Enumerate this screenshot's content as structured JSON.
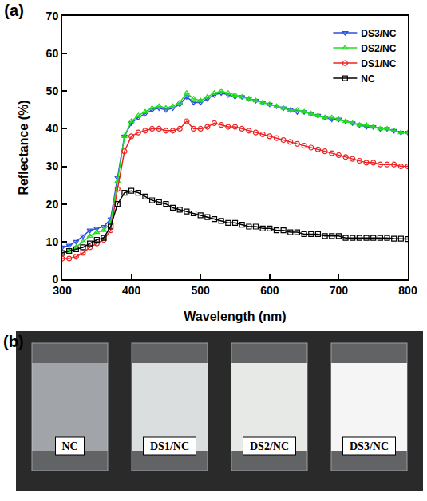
{
  "chart_data": {
    "type": "line",
    "title": "(a)",
    "x_label": "Wavelength (nm)",
    "y_label": "Reflectance (%)",
    "x": [
      300,
      310,
      320,
      330,
      340,
      350,
      360,
      370,
      380,
      390,
      400,
      410,
      420,
      430,
      440,
      450,
      460,
      470,
      480,
      490,
      500,
      510,
      520,
      530,
      540,
      550,
      560,
      570,
      580,
      590,
      600,
      610,
      620,
      630,
      640,
      650,
      660,
      670,
      680,
      690,
      700,
      710,
      720,
      730,
      740,
      750,
      760,
      770,
      780,
      790,
      800
    ],
    "series": [
      {
        "name": "DS3/NC",
        "color": "#2b4fe0",
        "marker": "triangle-down",
        "values": [
          8.5,
          9,
          10,
          11.5,
          13,
          13.5,
          14,
          16,
          27,
          38,
          41.5,
          43,
          44,
          45,
          45.5,
          45,
          45.5,
          46.5,
          48.5,
          47,
          47,
          48,
          49,
          49.5,
          49,
          48.5,
          48.5,
          48,
          47.5,
          47,
          46.5,
          46,
          45.5,
          45,
          44.5,
          44.5,
          44,
          43.5,
          43,
          42.5,
          42.5,
          42,
          41.5,
          41,
          40.5,
          40.5,
          40,
          40,
          39.5,
          39,
          39
        ]
      },
      {
        "name": "DS2/NC",
        "color": "#22dd22",
        "marker": "triangle-up",
        "values": [
          7,
          7.5,
          8.5,
          10,
          11.5,
          12.5,
          13,
          15,
          26,
          38,
          42,
          43.5,
          44.5,
          45.5,
          46,
          45.5,
          46,
          47,
          49.5,
          48,
          47.5,
          48.5,
          49.5,
          50,
          49.5,
          49,
          48.5,
          48,
          47.5,
          47,
          46.5,
          46,
          45.5,
          45,
          45,
          44.5,
          44,
          43.5,
          43,
          43,
          42.5,
          42,
          41.5,
          41,
          41,
          40.5,
          40,
          40,
          39.5,
          39,
          39
        ]
      },
      {
        "name": "DS1/NC",
        "color": "#ee2222",
        "marker": "circle",
        "values": [
          5.5,
          5.5,
          6,
          7,
          8.5,
          9.5,
          10.5,
          13,
          24,
          34,
          38,
          39,
          39.5,
          40,
          40,
          39.5,
          39.5,
          40,
          42,
          40,
          40,
          40.5,
          41.5,
          41,
          40.5,
          40.5,
          40,
          39.5,
          39,
          38.5,
          38,
          37.5,
          37,
          36.5,
          36,
          35.5,
          35,
          34.5,
          34,
          33.5,
          33,
          32.5,
          32,
          31.5,
          31,
          31,
          30.5,
          30.5,
          30.5,
          30,
          30
        ]
      },
      {
        "name": "NC",
        "color": "#000000",
        "marker": "square",
        "values": [
          7,
          7.5,
          8,
          8.5,
          9.5,
          10.5,
          11,
          14,
          20,
          23,
          23.5,
          23,
          22,
          21,
          20.5,
          20,
          19,
          18.5,
          18,
          17.5,
          17,
          16.5,
          16,
          15.5,
          15,
          15,
          14.5,
          14,
          14,
          13.5,
          13.5,
          13,
          13,
          12.5,
          12.5,
          12,
          12,
          12,
          11.5,
          11.5,
          11.5,
          11,
          11,
          11,
          11,
          11,
          11,
          11,
          10.8,
          10.8,
          10.7
        ]
      }
    ],
    "xlim": [
      300,
      800
    ],
    "xticks": [
      300,
      400,
      500,
      600,
      700,
      800
    ],
    "ylim": [
      0,
      70
    ],
    "yticks": [
      0,
      10,
      20,
      30,
      40,
      50,
      60,
      70
    ],
    "grid": false,
    "legend": "upper right"
  },
  "photo": {
    "title": "(b)",
    "samples": [
      "NC",
      "DS1/NC",
      "DS2/NC",
      "DS3/NC"
    ]
  }
}
